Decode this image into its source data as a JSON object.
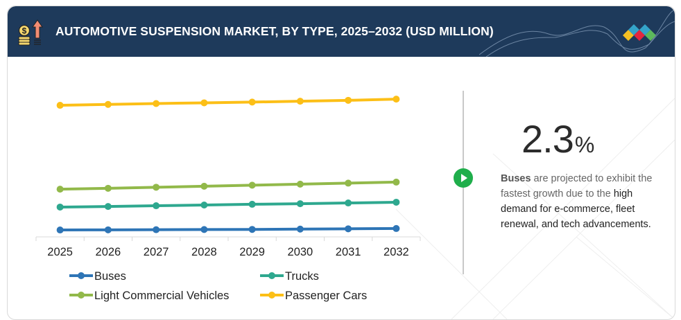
{
  "header": {
    "title": "AUTOMOTIVE SUSPENSION MARKET, BY TYPE, 2025–2032 (USD MILLION)",
    "icon": "money-growth-icon",
    "logo": "brand-diamonds-logo"
  },
  "colors": {
    "header_bg": "#1e3a5b",
    "buses": "#2e75b6",
    "trucks": "#2ea88f",
    "lcv": "#92b94a",
    "passenger_cars": "#fcbf17",
    "play_button": "#1fae4b"
  },
  "chart_data": {
    "type": "line",
    "title": "AUTOMOTIVE SUSPENSION MARKET, BY TYPE, 2025–2032 (USD MILLION)",
    "xlabel": "",
    "ylabel": "",
    "categories": [
      "2025",
      "2026",
      "2027",
      "2028",
      "2029",
      "2030",
      "2031",
      "2032"
    ],
    "y_axis_visible": false,
    "ylim": [
      0,
      100
    ],
    "units_note": "relative (no y-axis labels shown)",
    "grid": false,
    "legend_position": "bottom",
    "series": [
      {
        "name": "Buses",
        "color": "#2e75b6",
        "values": [
          4.7,
          4.8,
          4.9,
          5.0,
          5.1,
          5.3,
          5.5,
          5.7
        ]
      },
      {
        "name": "Trucks",
        "color": "#2ea88f",
        "values": [
          20.3,
          20.7,
          21.2,
          21.7,
          22.2,
          22.6,
          23.1,
          23.6
        ]
      },
      {
        "name": "Light Commercial Vehicles",
        "color": "#92b94a",
        "values": [
          32.5,
          33.1,
          33.8,
          34.5,
          35.2,
          35.9,
          36.6,
          37.3
        ]
      },
      {
        "name": "Passenger Cars",
        "color": "#fcbf17",
        "values": [
          89.6,
          90.2,
          90.8,
          91.3,
          91.8,
          92.4,
          93.0,
          93.8
        ]
      }
    ],
    "legend": [
      "Buses",
      "Trucks",
      "Light Commercial Vehicles",
      "Passenger Cars"
    ]
  },
  "insight": {
    "value": "2.3",
    "unit": "%",
    "bold_lead": "Buses",
    "text_part1": " are projected to exhibit the fastest growth due to the ",
    "text_part2": "high demand for e-commerce, fleet renewal, and tech advancements."
  }
}
